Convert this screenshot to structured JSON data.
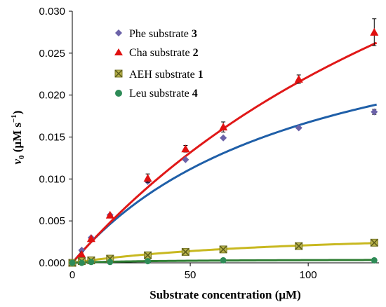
{
  "chart_data": {
    "type": "scatter",
    "xlabel": "Substrate concentration (μM)",
    "ylabel_italic": "v",
    "ylabel_sub": "0",
    "ylabel_rest": " (μM s",
    "ylabel_sup": "−1",
    "ylabel_end": ")",
    "xlim": [
      0,
      130
    ],
    "ylim": [
      0,
      0.03
    ],
    "xticks": [
      0,
      50,
      100
    ],
    "xtick_labels": [
      "0",
      "50",
      "100"
    ],
    "yticks": [
      0.0,
      0.005,
      0.01,
      0.015,
      0.02,
      0.025,
      0.03
    ],
    "ytick_labels": [
      "0.000",
      "0.005",
      "0.010",
      "0.015",
      "0.020",
      "0.025",
      "0.030"
    ],
    "legend_position": "top-left",
    "series": [
      {
        "name": "Phe substrate",
        "label_num": "3",
        "marker": "diamond",
        "color": "#6b62a8",
        "curve_color": "#1f5fa8",
        "x": [
          0,
          4,
          8,
          16,
          32,
          48,
          64,
          96,
          128
        ],
        "y": [
          0.0,
          0.0015,
          0.003,
          0.0057,
          0.0097,
          0.0123,
          0.0149,
          0.0161,
          0.018
        ],
        "err": [
          0,
          0,
          0,
          0,
          0,
          0,
          0,
          0,
          0.0003
        ],
        "fit": {
          "vmax": 0.0335,
          "km": 100
        }
      },
      {
        "name": "Cha substrate",
        "label_num": "2",
        "marker": "triangle",
        "color": "#e01010",
        "curve_color": "#e01818",
        "x": [
          0,
          4,
          8,
          16,
          32,
          48,
          64,
          96,
          128
        ],
        "y": [
          0.0,
          0.001,
          0.0029,
          0.0057,
          0.0101,
          0.0136,
          0.0162,
          0.0219,
          0.0275
        ],
        "err": [
          0,
          0.0003,
          0,
          0,
          0.0005,
          0.0004,
          0.0006,
          0.0005,
          0.0016
        ],
        "fit": {
          "vmax": 0.071,
          "km": 220
        }
      },
      {
        "name": "AEH substrate",
        "label_num": "1",
        "marker": "x-square",
        "color": "#9a9a3a",
        "curve_color": "#c8b820",
        "x": [
          0,
          4,
          8,
          16,
          32,
          48,
          64,
          96,
          128
        ],
        "y": [
          0.0,
          0.0002,
          0.0003,
          0.0005,
          0.0009,
          0.0013,
          0.0016,
          0.002,
          0.0024
        ],
        "err": [
          0,
          0,
          0,
          0,
          0,
          0,
          0,
          0,
          0
        ],
        "fit": {
          "vmax": 0.0042,
          "km": 100
        }
      },
      {
        "name": "Leu substrate",
        "label_num": "4",
        "marker": "circle",
        "color": "#2e8b57",
        "curve_color": "#2e7d32",
        "x": [
          0,
          4,
          8,
          16,
          32,
          64,
          128
        ],
        "y": [
          0.0,
          0.0,
          0.0001,
          0.0001,
          0.0002,
          0.0003,
          0.0003
        ],
        "err": [
          0,
          0,
          0,
          0,
          0,
          0,
          0
        ],
        "fit": {
          "vmax": 0.00045,
          "km": 40
        }
      }
    ]
  }
}
